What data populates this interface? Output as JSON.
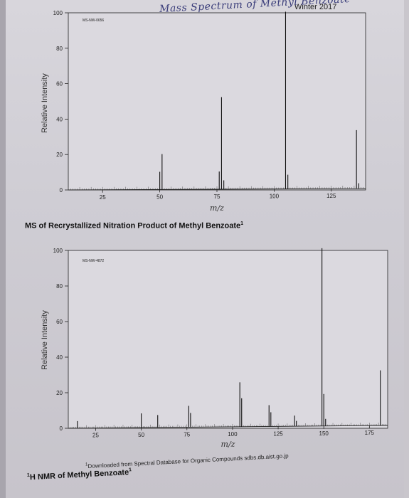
{
  "header": {
    "course_term": "Winter 2017",
    "handwritten_title": "Mass Spectrum of Methyl Benzoate"
  },
  "section2_heading": "MS of Recrystallized Nitration Product of Methyl Benzoate",
  "footnote": "Downloaded from Spectral Database for Organic Compounds sdbs.db.aist.go.jp",
  "next_heading": "H NMR of Methyl Benzoate",
  "chart_data": [
    {
      "type": "bar",
      "id_code": "MS-NW-0656",
      "xlabel": "m/z",
      "ylabel": "Relative Intensity",
      "xlim": [
        10,
        140
      ],
      "ylim": [
        0,
        100
      ],
      "x_ticks": [
        25,
        50,
        75,
        100,
        125
      ],
      "y_ticks": [
        0,
        20,
        40,
        60,
        80,
        100
      ],
      "peaks": [
        {
          "x": 50,
          "y": 10
        },
        {
          "x": 51,
          "y": 20
        },
        {
          "x": 76,
          "y": 10
        },
        {
          "x": 77,
          "y": 52
        },
        {
          "x": 78,
          "y": 5
        },
        {
          "x": 105,
          "y": 100
        },
        {
          "x": 106,
          "y": 8
        },
        {
          "x": 136,
          "y": 33
        },
        {
          "x": 137,
          "y": 3
        }
      ]
    },
    {
      "type": "bar",
      "id_code": "MS-NW-4872",
      "xlabel": "m/z",
      "ylabel": "Relative Intensity",
      "xlim": [
        10,
        185
      ],
      "ylim": [
        0,
        100
      ],
      "x_ticks": [
        25,
        50,
        75,
        100,
        125,
        150,
        175
      ],
      "y_ticks": [
        0,
        20,
        40,
        60,
        80,
        100
      ],
      "peaks": [
        {
          "x": 15,
          "y": 4
        },
        {
          "x": 50,
          "y": 8
        },
        {
          "x": 59,
          "y": 7
        },
        {
          "x": 76,
          "y": 12
        },
        {
          "x": 77,
          "y": 8
        },
        {
          "x": 104,
          "y": 25
        },
        {
          "x": 105,
          "y": 16
        },
        {
          "x": 120,
          "y": 12
        },
        {
          "x": 121,
          "y": 8
        },
        {
          "x": 134,
          "y": 6
        },
        {
          "x": 135,
          "y": 3
        },
        {
          "x": 149,
          "y": 100
        },
        {
          "x": 150,
          "y": 18
        },
        {
          "x": 151,
          "y": 4
        },
        {
          "x": 181,
          "y": 31
        }
      ]
    }
  ]
}
